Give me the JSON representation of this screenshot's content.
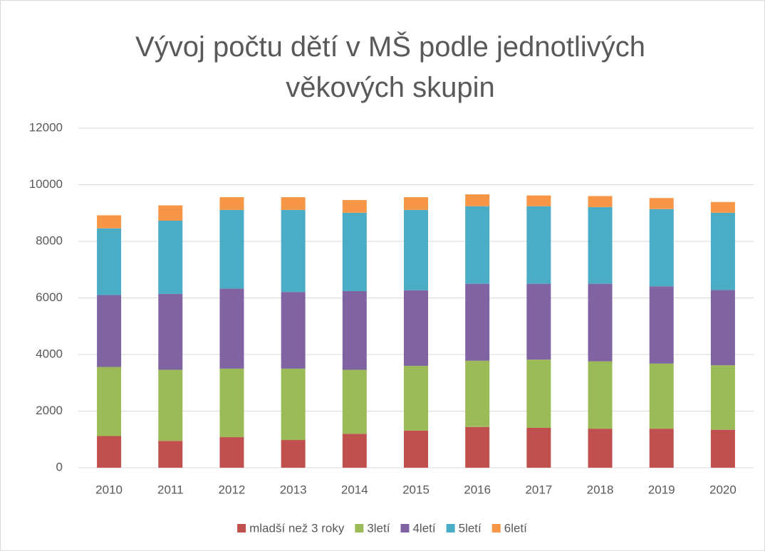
{
  "chart_data": {
    "type": "stacked_bar",
    "title": "Vývoj počtu dětí v MŠ podle jednotlivých věkových skupin",
    "categories": [
      "2010",
      "2011",
      "2012",
      "2013",
      "2014",
      "2015",
      "2016",
      "2017",
      "2018",
      "2019",
      "2020"
    ],
    "series": [
      {
        "name": "mladší než 3 roky",
        "color": "#c0504d",
        "values": [
          1120,
          950,
          1080,
          980,
          1200,
          1310,
          1440,
          1410,
          1380,
          1380,
          1340
        ]
      },
      {
        "name": "3letí",
        "color": "#9bbb59",
        "values": [
          2440,
          2510,
          2420,
          2520,
          2260,
          2290,
          2340,
          2410,
          2380,
          2300,
          2280
        ]
      },
      {
        "name": "4letí",
        "color": "#8064a2",
        "values": [
          2540,
          2680,
          2830,
          2710,
          2780,
          2670,
          2720,
          2680,
          2740,
          2730,
          2660
        ]
      },
      {
        "name": "5letí",
        "color": "#4bacc6",
        "values": [
          2360,
          2590,
          2780,
          2900,
          2770,
          2840,
          2740,
          2740,
          2710,
          2730,
          2730
        ]
      },
      {
        "name": "6letí",
        "color": "#f79646",
        "values": [
          460,
          540,
          450,
          450,
          450,
          450,
          420,
          380,
          390,
          390,
          380
        ]
      }
    ],
    "ylim": [
      0,
      12000
    ],
    "yticks": [
      0,
      2000,
      4000,
      6000,
      8000,
      10000,
      12000
    ],
    "grid": true,
    "legend": "bottom"
  }
}
